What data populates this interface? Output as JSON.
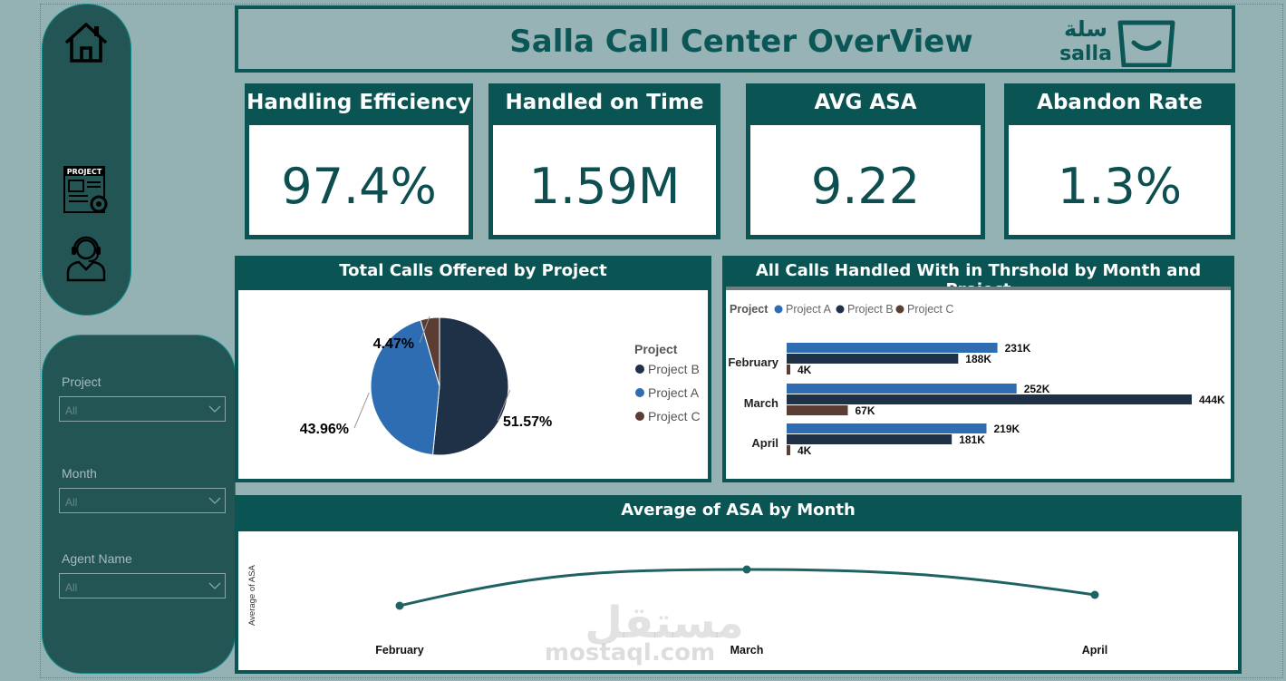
{
  "nav": {
    "items": [
      {
        "icon": "home-icon"
      },
      {
        "icon": "project-icon"
      },
      {
        "icon": "agent-headset-icon"
      }
    ]
  },
  "header": {
    "title": "Salla Call Center OverView",
    "logo_arabic": "سلة",
    "logo_latin": "salla"
  },
  "kpis": [
    {
      "title": "Handling Efficiency",
      "value": "97.4%"
    },
    {
      "title": "Handled on Time",
      "value": "1.59M"
    },
    {
      "title": "AVG ASA",
      "value": "9.22"
    },
    {
      "title": "Abandon Rate",
      "value": "1.3%"
    }
  ],
  "filters": [
    {
      "label": "Project",
      "value": "All"
    },
    {
      "label": "Month",
      "value": "All"
    },
    {
      "label": "Agent Name",
      "value": "All"
    }
  ],
  "colors": {
    "project_a": "#2f6db3",
    "project_b": "#1f3147",
    "project_c": "#5c3d33",
    "teal": "#0b5454",
    "line": "#1f6262"
  },
  "pie": {
    "title": "Total Calls Offered by Project",
    "legend_title": "Project",
    "legend": [
      "Project B",
      "Project A",
      "Project C"
    ],
    "labels": [
      "51.57%",
      "43.96%",
      "4.47%"
    ]
  },
  "bar": {
    "title": "All Calls Handled With in Thrshold by Month and Project",
    "legend_title": "Project",
    "legend": [
      "Project A",
      "Project B",
      "Project C"
    ],
    "months": [
      "February",
      "March",
      "April"
    ],
    "labels": [
      [
        "231K",
        "188K",
        "4K"
      ],
      [
        "252K",
        "444K",
        "67K"
      ],
      [
        "219K",
        "181K",
        "4K"
      ]
    ]
  },
  "line": {
    "title": "Average of ASA by Month",
    "ylabel": "Average of ASA",
    "months": [
      "February",
      "March",
      "April"
    ]
  },
  "watermark": {
    "arabic": "مستقل",
    "latin": "mostaql.com"
  },
  "chart_data": [
    {
      "type": "pie",
      "title": "Total Calls Offered by Project",
      "legend_title": "Project",
      "categories": [
        "Project B",
        "Project A",
        "Project C"
      ],
      "values": [
        51.57,
        43.96,
        4.47
      ]
    },
    {
      "type": "bar",
      "orientation": "horizontal",
      "title": "All Calls Handled With in Thrshold by Month and Project",
      "legend_title": "Project",
      "categories": [
        "February",
        "March",
        "April"
      ],
      "series": [
        {
          "name": "Project A",
          "values": [
            231000,
            252000,
            219000
          ]
        },
        {
          "name": "Project B",
          "values": [
            188000,
            444000,
            181000
          ]
        },
        {
          "name": "Project C",
          "values": [
            4000,
            67000,
            4000
          ]
        }
      ],
      "xlim": [
        0,
        444000
      ],
      "legend_position": "top-left"
    },
    {
      "type": "line",
      "title": "Average of ASA by Month",
      "ylabel": "Average of ASA",
      "x": [
        "February",
        "March",
        "April"
      ],
      "values": [
        8.95,
        9.45,
        9.1
      ],
      "ylim": [
        8.6,
        9.6
      ]
    }
  ]
}
